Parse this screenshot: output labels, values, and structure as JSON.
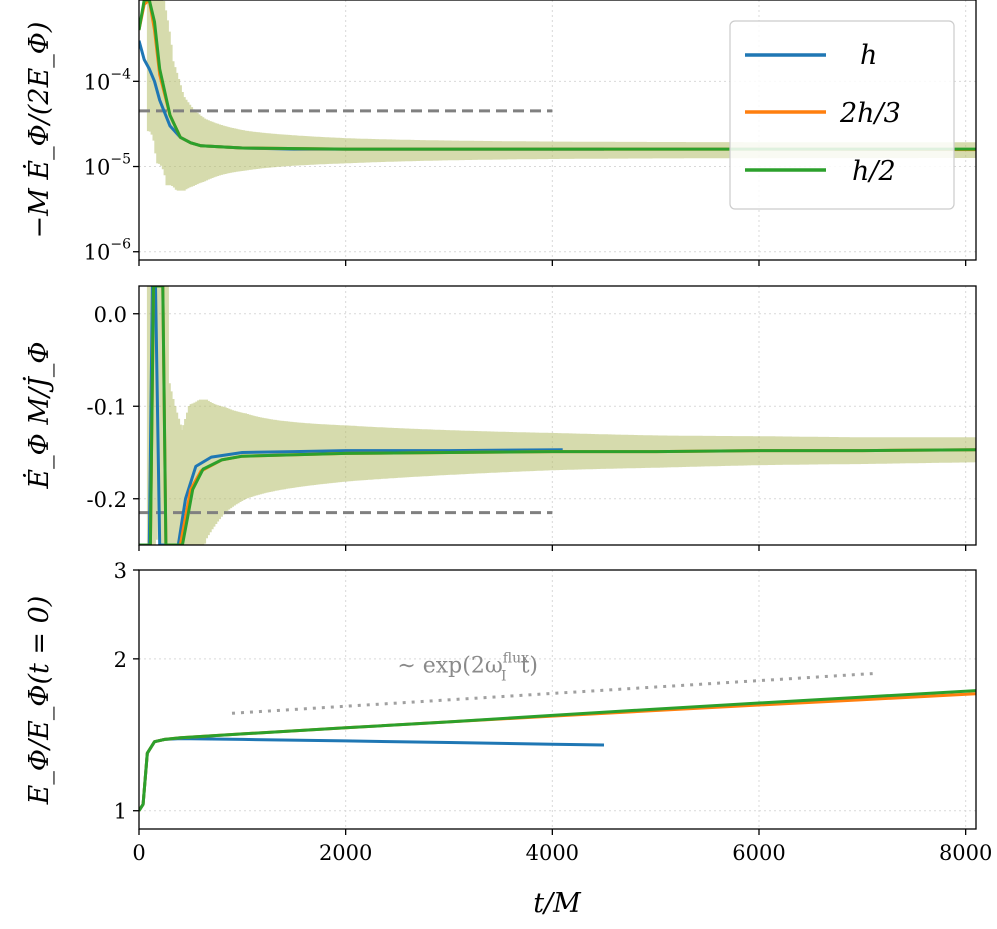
{
  "colors": {
    "h": "#1f77b4",
    "2h/3": "#ff7f0e",
    "h/2": "#2ca02c",
    "reference": "#808080",
    "band": "#b5bd6a",
    "grid": "#d9d9d9"
  },
  "legend": {
    "placement": "top-right (panel 1)",
    "entries": [
      "h",
      "2h/3",
      "h/2"
    ]
  },
  "chart_data": [
    {
      "type": "line",
      "panel": "top",
      "ylabel": "−M Ė_Φ/(2E_Φ)",
      "yscale": "log",
      "xlim": [
        0,
        8100
      ],
      "ylim": [
        8e-07,
        0.0009
      ],
      "yticks": [
        {
          "value": 0.0001,
          "base": "10",
          "exp": "−4"
        },
        {
          "value": 1e-05,
          "base": "10",
          "exp": "−5"
        },
        {
          "value": 1e-06,
          "base": "10",
          "exp": "−6"
        }
      ],
      "reference_line": {
        "y": 4.5e-05,
        "x": [
          0,
          4000
        ],
        "style": "dashed"
      },
      "oscillation_band": "large near t=0, narrowing to ~±0.1 decade by t=1500",
      "series": [
        {
          "name": "h",
          "x": [
            0,
            50,
            100,
            150,
            200,
            300,
            400,
            500,
            600,
            800,
            1000,
            1500,
            2000,
            3000,
            4000,
            4500
          ],
          "y": [
            0.0003,
            0.00018,
            0.00014,
            0.0001,
            6e-05,
            3e-05,
            2.2e-05,
            1.9e-05,
            1.75e-05,
            1.7e-05,
            1.65e-05,
            1.6e-05,
            1.6e-05,
            1.6e-05,
            1.6e-05,
            1.6e-05
          ]
        },
        {
          "name": "2h/3",
          "x": [
            0,
            50,
            100,
            150,
            200,
            300,
            400,
            500,
            600,
            800,
            1000,
            2000,
            4000,
            6000,
            8100
          ],
          "y": [
            0.0004,
            0.0008,
            0.0009,
            0.0004,
            0.00012,
            4e-05,
            2.2e-05,
            1.9e-05,
            1.75e-05,
            1.7e-05,
            1.65e-05,
            1.6e-05,
            1.6e-05,
            1.6e-05,
            1.58e-05
          ]
        },
        {
          "name": "h/2",
          "x": [
            0,
            50,
            100,
            150,
            200,
            300,
            400,
            500,
            600,
            800,
            1000,
            2000,
            4000,
            6000,
            8100
          ],
          "y": [
            0.0004,
            0.0009,
            0.0009,
            0.0005,
            0.00014,
            4e-05,
            2.2e-05,
            1.9e-05,
            1.75e-05,
            1.7e-05,
            1.65e-05,
            1.6e-05,
            1.6e-05,
            1.6e-05,
            1.6e-05
          ]
        }
      ]
    },
    {
      "type": "line",
      "panel": "middle",
      "ylabel": "Ė_Φ M/J̇_Φ",
      "xlim": [
        0,
        8100
      ],
      "ylim": [
        -0.25,
        0.03
      ],
      "yticks": [
        {
          "value": 0.0,
          "label": "0.0"
        },
        {
          "value": -0.1,
          "label": "-0.1"
        },
        {
          "value": -0.2,
          "label": "-0.2"
        }
      ],
      "reference_line": {
        "y": -0.215,
        "x": [
          0,
          4000
        ],
        "style": "dashed"
      },
      "oscillation_band": "width ~0.09 at t=1000, ~0.03 at t=8000",
      "series": [
        {
          "name": "h",
          "x": [
            0,
            100,
            130,
            160,
            200,
            250,
            300,
            380,
            450,
            550,
            700,
            1000,
            1500,
            2000,
            3000,
            4100
          ],
          "y": [
            -0.25,
            -0.25,
            0.03,
            0.03,
            -0.25,
            -0.25,
            -0.25,
            -0.25,
            -0.2,
            -0.165,
            -0.155,
            -0.15,
            -0.149,
            -0.148,
            -0.148,
            -0.147
          ]
        },
        {
          "name": "2h/3",
          "x": [
            0,
            110,
            140,
            170,
            230,
            260,
            300,
            400,
            450,
            500,
            600,
            800,
            1000,
            2000,
            3000,
            4000,
            5000,
            6000,
            7000,
            8100
          ],
          "y": [
            -0.25,
            -0.25,
            0.03,
            0.03,
            0.03,
            -0.25,
            -0.25,
            -0.25,
            -0.22,
            -0.19,
            -0.17,
            -0.158,
            -0.154,
            -0.151,
            -0.15,
            -0.149,
            -0.149,
            -0.148,
            -0.148,
            -0.147
          ]
        },
        {
          "name": "h/2",
          "x": [
            0,
            110,
            140,
            170,
            230,
            260,
            300,
            420,
            470,
            520,
            620,
            800,
            1000,
            2000,
            3000,
            4000,
            5000,
            6000,
            7000,
            8100
          ],
          "y": [
            -0.25,
            -0.25,
            0.03,
            0.03,
            0.03,
            -0.25,
            -0.25,
            -0.25,
            -0.22,
            -0.19,
            -0.168,
            -0.158,
            -0.154,
            -0.151,
            -0.15,
            -0.149,
            -0.149,
            -0.148,
            -0.148,
            -0.147
          ]
        }
      ]
    },
    {
      "type": "line",
      "panel": "bottom",
      "ylabel": "E_Φ/E_Φ(t = 0)",
      "xlabel": "t/M",
      "yscale": "log",
      "xlim": [
        0,
        8100
      ],
      "ylim": [
        0.92,
        3.0
      ],
      "xticks": [
        0,
        2000,
        4000,
        6000,
        8000
      ],
      "xtick_labels": [
        "0",
        "2000",
        "4000",
        "6000",
        "8000"
      ],
      "yticks": [
        {
          "value": 1,
          "label": "1"
        },
        {
          "value": 2,
          "label": "2"
        },
        {
          "value": 3,
          "label": "3"
        }
      ],
      "reference_line": {
        "x": [
          900,
          7100
        ],
        "y": [
          1.56,
          1.87
        ],
        "style": "dotted"
      },
      "annotation": {
        "prefix": "∼ exp(2ω",
        "sup": "flux",
        "sub": "I",
        "suffix": "t)",
        "x": 2500,
        "y": 1.88
      },
      "series": [
        {
          "name": "h",
          "x": [
            0,
            40,
            80,
            150,
            250,
            400,
            1000,
            2000,
            3000,
            4000,
            4500
          ],
          "y": [
            1.0,
            1.03,
            1.3,
            1.37,
            1.385,
            1.39,
            1.385,
            1.375,
            1.365,
            1.355,
            1.35
          ]
        },
        {
          "name": "2h/3",
          "x": [
            0,
            40,
            80,
            150,
            250,
            400,
            1000,
            2000,
            3000,
            4000,
            5000,
            6000,
            7000,
            8100
          ],
          "y": [
            1.0,
            1.03,
            1.3,
            1.37,
            1.385,
            1.395,
            1.42,
            1.46,
            1.5,
            1.54,
            1.58,
            1.62,
            1.66,
            1.705
          ]
        },
        {
          "name": "h/2",
          "x": [
            0,
            40,
            80,
            150,
            250,
            400,
            1000,
            2000,
            3000,
            4000,
            5000,
            6000,
            7000,
            8100
          ],
          "y": [
            1.0,
            1.03,
            1.3,
            1.37,
            1.385,
            1.395,
            1.42,
            1.46,
            1.5,
            1.545,
            1.59,
            1.635,
            1.68,
            1.73
          ]
        }
      ]
    }
  ]
}
